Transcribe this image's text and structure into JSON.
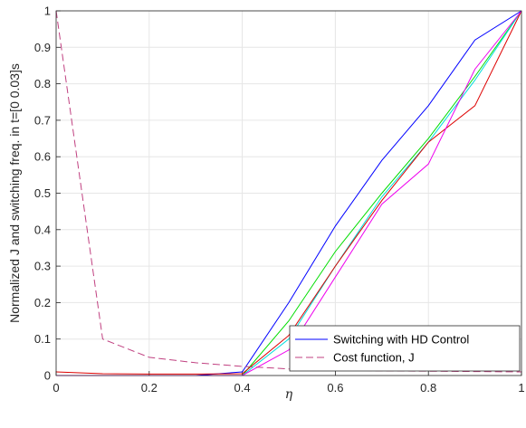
{
  "chart_data": {
    "type": "line",
    "xlabel": "η",
    "ylabel": "Normalized J and switching freq.  in  t=[0    0.03]s",
    "xlim": [
      0,
      1
    ],
    "ylim": [
      0,
      1
    ],
    "xticks": [
      "0",
      "0.2",
      "0.4",
      "0.6",
      "0.8",
      "1"
    ],
    "yticks": [
      "0",
      "0.1",
      "0.2",
      "0.3",
      "0.4",
      "0.5",
      "0.6",
      "0.7",
      "0.8",
      "0.9",
      "1"
    ],
    "grid": true,
    "legend_position": "bottom-right",
    "legend": [
      {
        "label": "Switching with HD Control",
        "color": "#0000ff",
        "style": "solid"
      },
      {
        "label": "Cost function, J",
        "color": "#c04080",
        "style": "dashed"
      }
    ],
    "series": [
      {
        "color": "#0000ff",
        "style": "solid",
        "x": [
          0,
          0.1,
          0.2,
          0.3,
          0.4,
          0.5,
          0.6,
          0.7,
          0.8,
          0.9,
          1.0
        ],
        "y": [
          0.0,
          0.0,
          0.0,
          0.0,
          0.01,
          0.2,
          0.41,
          0.59,
          0.74,
          0.92,
          1.0
        ]
      },
      {
        "color": "#00dd00",
        "style": "solid",
        "x": [
          0,
          0.1,
          0.2,
          0.3,
          0.4,
          0.5,
          0.6,
          0.7,
          0.8,
          0.9,
          1.0
        ],
        "y": [
          0.0,
          0.0,
          0.0,
          0.0,
          0.0,
          0.15,
          0.34,
          0.5,
          0.65,
          0.82,
          1.0
        ]
      },
      {
        "color": "#00dddd",
        "style": "solid",
        "x": [
          0,
          0.1,
          0.2,
          0.3,
          0.4,
          0.5,
          0.6,
          0.7,
          0.8,
          0.9,
          1.0
        ],
        "y": [
          0.0,
          0.0,
          0.0,
          0.0,
          0.0,
          0.1,
          0.3,
          0.49,
          0.64,
          0.81,
          1.0
        ]
      },
      {
        "color": "#dd0000",
        "style": "solid",
        "x": [
          0,
          0.1,
          0.2,
          0.3,
          0.4,
          0.5,
          0.6,
          0.7,
          0.8,
          0.9,
          1.0
        ],
        "y": [
          0.01,
          0.005,
          0.004,
          0.004,
          0.005,
          0.11,
          0.3,
          0.48,
          0.64,
          0.74,
          1.0
        ]
      },
      {
        "color": "#ee00ee",
        "style": "solid",
        "x": [
          0,
          0.1,
          0.2,
          0.3,
          0.4,
          0.5,
          0.6,
          0.7,
          0.8,
          0.9,
          1.0
        ],
        "y": [
          0.0,
          0.0,
          0.0,
          0.0,
          0.0,
          0.07,
          0.27,
          0.47,
          0.58,
          0.84,
          1.0
        ]
      },
      {
        "color": "#c04080",
        "style": "dashed",
        "x": [
          0,
          0.1,
          0.2,
          0.3,
          0.4,
          0.5,
          0.6,
          0.7,
          0.8,
          0.9,
          1.0
        ],
        "y": [
          1.0,
          0.1,
          0.05,
          0.035,
          0.025,
          0.018,
          0.015,
          0.013,
          0.012,
          0.011,
          0.01
        ]
      }
    ]
  }
}
